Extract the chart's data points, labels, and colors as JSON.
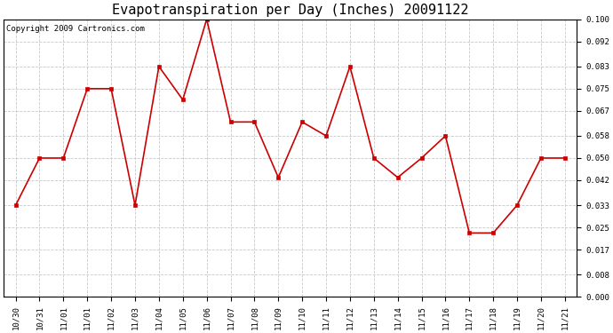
{
  "title": "Evapotranspiration per Day (Inches) 20091122",
  "copyright_text": "Copyright 2009 Cartronics.com",
  "x_labels": [
    "10/30",
    "10/31",
    "11/01",
    "11/01",
    "11/02",
    "11/03",
    "11/04",
    "11/05",
    "11/06",
    "11/07",
    "11/08",
    "11/09",
    "11/10",
    "11/11",
    "11/12",
    "11/13",
    "11/14",
    "11/15",
    "11/16",
    "11/17",
    "11/18",
    "11/19",
    "11/20",
    "11/21"
  ],
  "y_vals": [
    0.033,
    0.05,
    0.05,
    0.075,
    0.075,
    0.033,
    0.083,
    0.071,
    0.1,
    0.063,
    0.063,
    0.043,
    0.063,
    0.058,
    0.083,
    0.05,
    0.043,
    0.05,
    0.058,
    0.023,
    0.023,
    0.033,
    0.05,
    0.05
  ],
  "ylim": [
    0.0,
    0.1
  ],
  "yticks": [
    0.0,
    0.008,
    0.017,
    0.025,
    0.033,
    0.042,
    0.05,
    0.058,
    0.067,
    0.075,
    0.083,
    0.092,
    0.1
  ],
  "line_color": "#cc0000",
  "marker": "s",
  "marker_size": 3,
  "bg_color": "#ffffff",
  "grid_color": "#c8c8c8",
  "title_fontsize": 11,
  "copyright_fontsize": 6.5,
  "tick_fontsize": 6.5,
  "figwidth": 6.9,
  "figheight": 3.75,
  "dpi": 100
}
